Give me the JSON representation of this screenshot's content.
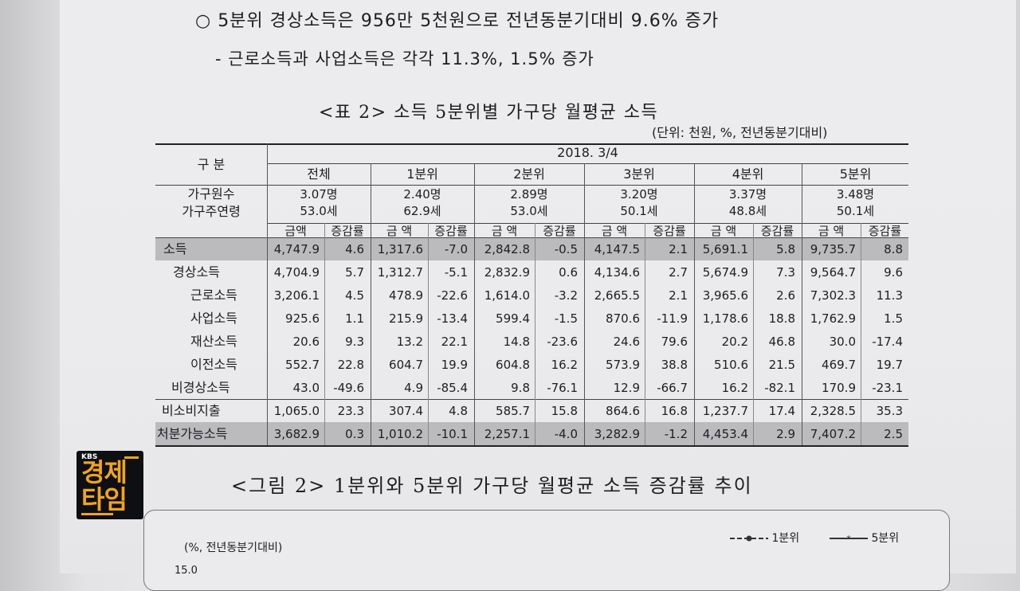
{
  "text": {
    "line1": "○ 5분위 경상소득은 956만 5천원으로 전년동분기대비 9.6% 증가",
    "line2": "- 근로소득과 사업소득은 각각 11.3%, 1.5% 증가",
    "table_title": "<표 2> 소득 5분위별 가구당 월평균 소득",
    "unit": "(단위: 천원, %, 전년동분기대비)",
    "figure_title": "<그림 2> 1분위와 5분위 가구당 월평균 소득 증감률 추이"
  },
  "table": {
    "corner_label": "구 분",
    "period": "2018. 3/4",
    "groups": [
      "전체",
      "1분위",
      "2분위",
      "3분위",
      "4분위",
      "5분위"
    ],
    "household_size_label": "가구원수",
    "household_age_label": "가구주연령",
    "household_sizes": [
      "3.07명",
      "2.40명",
      "2.89명",
      "3.20명",
      "3.37명",
      "3.48명"
    ],
    "household_ages": [
      "53.0세",
      "62.9세",
      "53.0세",
      "50.1세",
      "48.8세",
      "50.1세"
    ],
    "amount_label": "금액",
    "amount_label_spaced": "금 액",
    "rate_label": "증감률",
    "rows": [
      {
        "label": "소득",
        "cells": [
          "4,747.9",
          "4.6",
          "1,317.6",
          "-7.0",
          "2,842.8",
          "-0.5",
          "4,147.5",
          "2.1",
          "5,691.1",
          "5.8",
          "9,735.7",
          "8.8"
        ]
      },
      {
        "label": "경상소득",
        "cells": [
          "4,704.9",
          "5.7",
          "1,312.7",
          "-5.1",
          "2,832.9",
          "0.6",
          "4,134.6",
          "2.7",
          "5,674.9",
          "7.3",
          "9,564.7",
          "9.6"
        ]
      },
      {
        "label": "근로소득",
        "cells": [
          "3,206.1",
          "4.5",
          "478.9",
          "-22.6",
          "1,614.0",
          "-3.2",
          "2,665.5",
          "2.1",
          "3,965.6",
          "2.6",
          "7,302.3",
          "11.3"
        ]
      },
      {
        "label": "사업소득",
        "cells": [
          "925.6",
          "1.1",
          "215.9",
          "-13.4",
          "599.4",
          "-1.5",
          "870.6",
          "-11.9",
          "1,178.6",
          "18.8",
          "1,762.9",
          "1.5"
        ]
      },
      {
        "label": "재산소득",
        "cells": [
          "20.6",
          "9.3",
          "13.2",
          "22.1",
          "14.8",
          "-23.6",
          "24.6",
          "79.6",
          "20.2",
          "46.8",
          "30.0",
          "-17.4"
        ]
      },
      {
        "label": "이전소득",
        "cells": [
          "552.7",
          "22.8",
          "604.7",
          "19.9",
          "604.8",
          "16.2",
          "573.9",
          "38.8",
          "510.6",
          "21.5",
          "469.7",
          "19.7"
        ]
      },
      {
        "label": "비경상소득",
        "cells": [
          "43.0",
          "-49.6",
          "4.9",
          "-85.4",
          "9.8",
          "-76.1",
          "12.9",
          "-66.7",
          "16.2",
          "-82.1",
          "170.9",
          "-23.1"
        ]
      },
      {
        "label": "비소비지출",
        "cells": [
          "1,065.0",
          "23.3",
          "307.4",
          "4.8",
          "585.7",
          "15.8",
          "864.6",
          "16.8",
          "1,237.7",
          "17.4",
          "2,328.5",
          "35.3"
        ]
      },
      {
        "label": "처분가능소득",
        "cells": [
          "3,682.9",
          "0.3",
          "1,010.2",
          "-10.1",
          "2,257.1",
          "-4.0",
          "3,282.9",
          "-1.2",
          "4,453.4",
          "2.9",
          "7,407.2",
          "2.5"
        ]
      }
    ]
  },
  "chart_preview": {
    "y_unit_label": "(%, 전년동분기대비)",
    "y_top_tick": "15.0",
    "legend": [
      "1분위",
      "5분위"
    ]
  },
  "logo": {
    "small": "KBS",
    "line1": "경제",
    "line2": "타임"
  },
  "colors": {
    "highlight_row": "#bbbbbe",
    "logo_accent": "#f2a41c",
    "logo_bg": "#0d0f12"
  }
}
